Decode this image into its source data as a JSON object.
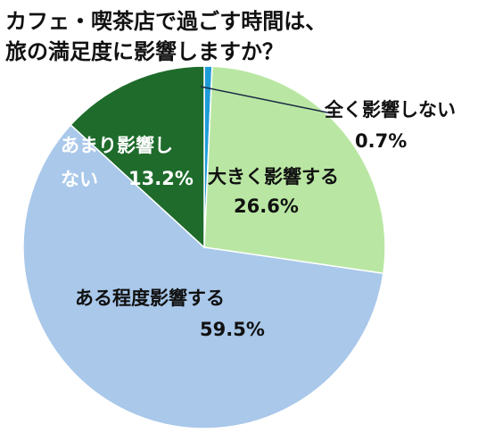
{
  "chart_data": {
    "type": "pie",
    "title": [
      "カフェ・喫茶店で過ごす時間は、",
      "旅の満足度に影響しますか？"
    ],
    "categories": [
      "全く影響しない",
      "大きく影響する",
      "ある程度影響する",
      "あまり影響しない"
    ],
    "values": [
      0.7,
      26.6,
      59.5,
      13.2
    ],
    "value_labels": [
      "0.7%",
      "26.6%",
      "59.5%",
      "13.2%"
    ],
    "colors": [
      "#1f9bd8",
      "#b9e7a3",
      "#a9c8ea",
      "#1e6b2b"
    ],
    "start_angle": 90,
    "direction": "clockwise"
  }
}
